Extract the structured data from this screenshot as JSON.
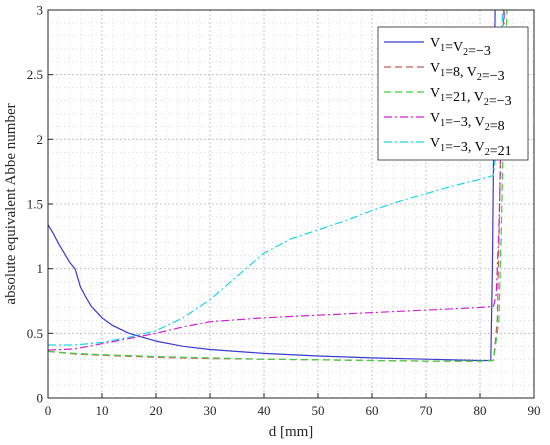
{
  "chart_data": {
    "type": "line",
    "xlabel": "d [mm]",
    "ylabel": "absolute equivalent Abbe number",
    "xlim": [
      0,
      90
    ],
    "ylim": [
      0,
      3
    ],
    "xticks": [
      "0",
      "10",
      "20",
      "30",
      "40",
      "50",
      "60",
      "70",
      "80",
      "90"
    ],
    "yticks": [
      "0",
      "0.5",
      "1",
      "1.5",
      "2",
      "2.5",
      "3"
    ],
    "grid": true,
    "minor_grid": true,
    "legend_position": "top-right",
    "series": [
      {
        "name": "V1=V2=−3",
        "color": "#3a3ad0",
        "style": "solid",
        "x": [
          0,
          1,
          2,
          3,
          4,
          5,
          5.5,
          6,
          7,
          8,
          10,
          12,
          15,
          20,
          25,
          30,
          40,
          50,
          60,
          70,
          80,
          82,
          82.3,
          82.6,
          82.8
        ],
        "y": [
          1.34,
          1.27,
          1.19,
          1.12,
          1.05,
          1.0,
          0.93,
          0.86,
          0.78,
          0.71,
          0.62,
          0.56,
          0.5,
          0.44,
          0.4,
          0.375,
          0.345,
          0.325,
          0.31,
          0.3,
          0.29,
          0.29,
          1.0,
          2.2,
          3.0
        ]
      },
      {
        "name": "V1=8, V2=−3",
        "color": "#cc5b5b",
        "style": "dashed",
        "x": [
          0,
          5,
          10,
          20,
          30,
          40,
          50,
          60,
          70,
          80,
          82.5,
          83.2,
          83.6,
          84.0,
          84.4
        ],
        "y": [
          0.36,
          0.34,
          0.33,
          0.315,
          0.305,
          0.3,
          0.295,
          0.29,
          0.285,
          0.285,
          0.29,
          0.6,
          1.4,
          2.4,
          3.0
        ]
      },
      {
        "name": "V1=21, V2=−3",
        "color": "#3fcf3f",
        "style": "dashed",
        "x": [
          0,
          5,
          10,
          20,
          30,
          40,
          50,
          60,
          70,
          80,
          82.5,
          83.5,
          84.0,
          84.5,
          85.0
        ],
        "y": [
          0.36,
          0.345,
          0.335,
          0.32,
          0.31,
          0.3,
          0.295,
          0.29,
          0.285,
          0.285,
          0.29,
          0.6,
          1.4,
          2.4,
          3.0
        ]
      },
      {
        "name": "V1=−3, V2=8",
        "color": "#d21fd2",
        "style": "dashdot",
        "x": [
          0,
          5,
          10,
          15,
          20,
          25,
          30,
          40,
          50,
          60,
          70,
          80,
          82.5,
          83.0,
          83.5,
          84.0,
          84.5
        ],
        "y": [
          0.37,
          0.38,
          0.42,
          0.46,
          0.5,
          0.55,
          0.59,
          0.62,
          0.64,
          0.66,
          0.68,
          0.7,
          0.71,
          0.8,
          1.3,
          2.2,
          3.0
        ]
      },
      {
        "name": "V1=−3, V2=21",
        "color": "#19d6e6",
        "style": "dashdot",
        "x": [
          0,
          5,
          10,
          15,
          20,
          25,
          30,
          35,
          40,
          45,
          50,
          55,
          60,
          65,
          70,
          75,
          80,
          82.5,
          83.2,
          83.7,
          84.2
        ],
        "y": [
          0.41,
          0.41,
          0.43,
          0.47,
          0.52,
          0.62,
          0.76,
          0.94,
          1.12,
          1.23,
          1.3,
          1.37,
          1.45,
          1.52,
          1.58,
          1.64,
          1.69,
          1.72,
          2.0,
          2.5,
          3.0
        ]
      }
    ],
    "legend": [
      {
        "main": "V",
        "parts": [
          [
            "V",
            "1"
          ],
          [
            "=V",
            "2"
          ],
          [
            "=−3",
            ""
          ]
        ]
      },
      {
        "parts": [
          [
            "V",
            "1"
          ],
          [
            "=8, V",
            "2"
          ],
          [
            "=−3",
            ""
          ]
        ]
      },
      {
        "parts": [
          [
            "V",
            "1"
          ],
          [
            "=21, V",
            "2"
          ],
          [
            "=−3",
            ""
          ]
        ]
      },
      {
        "parts": [
          [
            "V",
            "1"
          ],
          [
            "=−3, V",
            "2"
          ],
          [
            "=8",
            ""
          ]
        ]
      },
      {
        "parts": [
          [
            "V",
            "1"
          ],
          [
            "=−3, V",
            "2"
          ],
          [
            "=21",
            ""
          ]
        ]
      }
    ]
  }
}
